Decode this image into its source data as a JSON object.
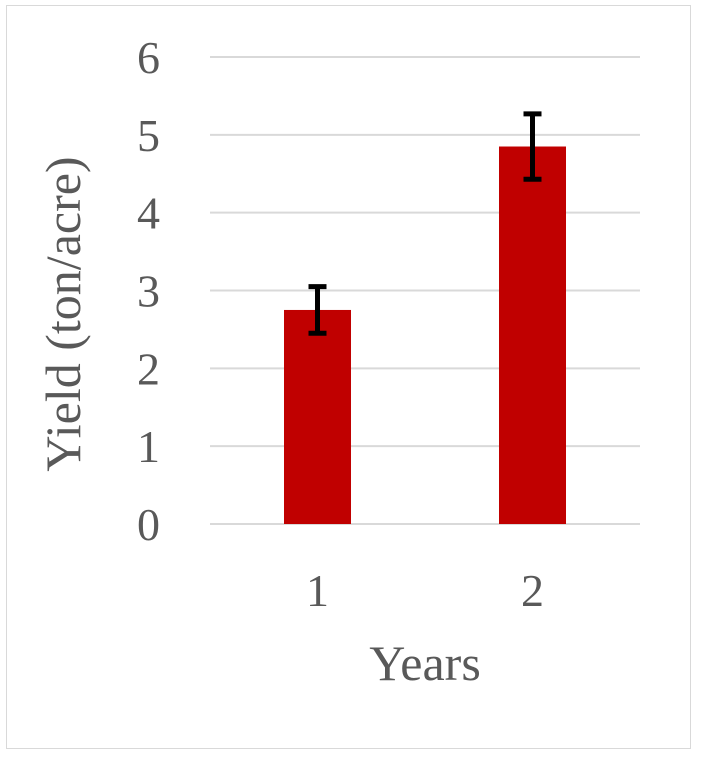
{
  "chart_data": {
    "type": "bar",
    "title": "",
    "xlabel": "Years",
    "ylabel": "Yield (ton/acre)",
    "categories": [
      "1",
      "2"
    ],
    "values": [
      2.75,
      4.85
    ],
    "error": [
      0.3,
      0.42
    ],
    "ylim": [
      0,
      6
    ],
    "yticks": [
      "0",
      "1",
      "2",
      "3",
      "4",
      "5",
      "6"
    ],
    "grid": true,
    "bar_color": "#c00000",
    "error_color": "#000000",
    "gridline_color": "#d9d9d9",
    "text_color": "#595959"
  }
}
